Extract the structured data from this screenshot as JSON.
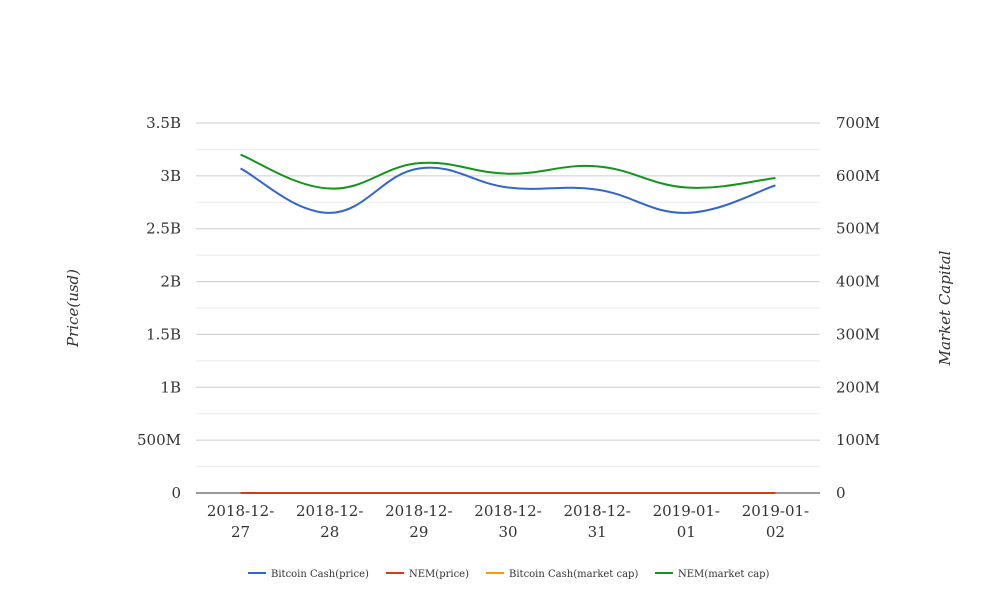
{
  "chart_data": {
    "type": "line",
    "categories": [
      [
        "2018-12-",
        "27"
      ],
      [
        "2018-12-",
        "28"
      ],
      [
        "2018-12-",
        "29"
      ],
      [
        "2018-12-",
        "30"
      ],
      [
        "2018-12-",
        "31"
      ],
      [
        "2019-01-",
        "01"
      ],
      [
        "2019-01-",
        "02"
      ]
    ],
    "left_axis": {
      "label": "Price(usd)",
      "ticks": [
        "0",
        "500M",
        "1B",
        "1.5B",
        "2B",
        "2.5B",
        "3B",
        "3.5B"
      ],
      "ylim": [
        0,
        3500000000
      ]
    },
    "right_axis": {
      "label": "Market Capital",
      "ticks": [
        "0",
        "100M",
        "200M",
        "300M",
        "400M",
        "500M",
        "600M",
        "700M"
      ],
      "ylim": [
        0,
        700000000
      ]
    },
    "grid": true,
    "legend_position": "bottom",
    "series": [
      {
        "name": "Bitcoin Cash(price)",
        "axis": "left",
        "color": "#3366cc",
        "values": [
          3070000000,
          2650000000,
          3070000000,
          2890000000,
          2870000000,
          2650000000,
          2910000000
        ]
      },
      {
        "name": "NEM(price)",
        "axis": "left",
        "color": "#dc3912",
        "values": [
          0.045,
          0.044,
          0.046,
          0.045,
          0.045,
          0.044,
          0.046
        ]
      },
      {
        "name": "Bitcoin Cash(market cap)",
        "axis": "right",
        "color": "#ff9900",
        "values": [
          170,
          160,
          170,
          165,
          163,
          158,
          165
        ]
      },
      {
        "name": "NEM(market cap)",
        "axis": "right",
        "color": "#109618",
        "values": [
          640000000,
          576000000,
          624000000,
          604000000,
          618000000,
          578000000,
          596000000
        ]
      }
    ]
  }
}
